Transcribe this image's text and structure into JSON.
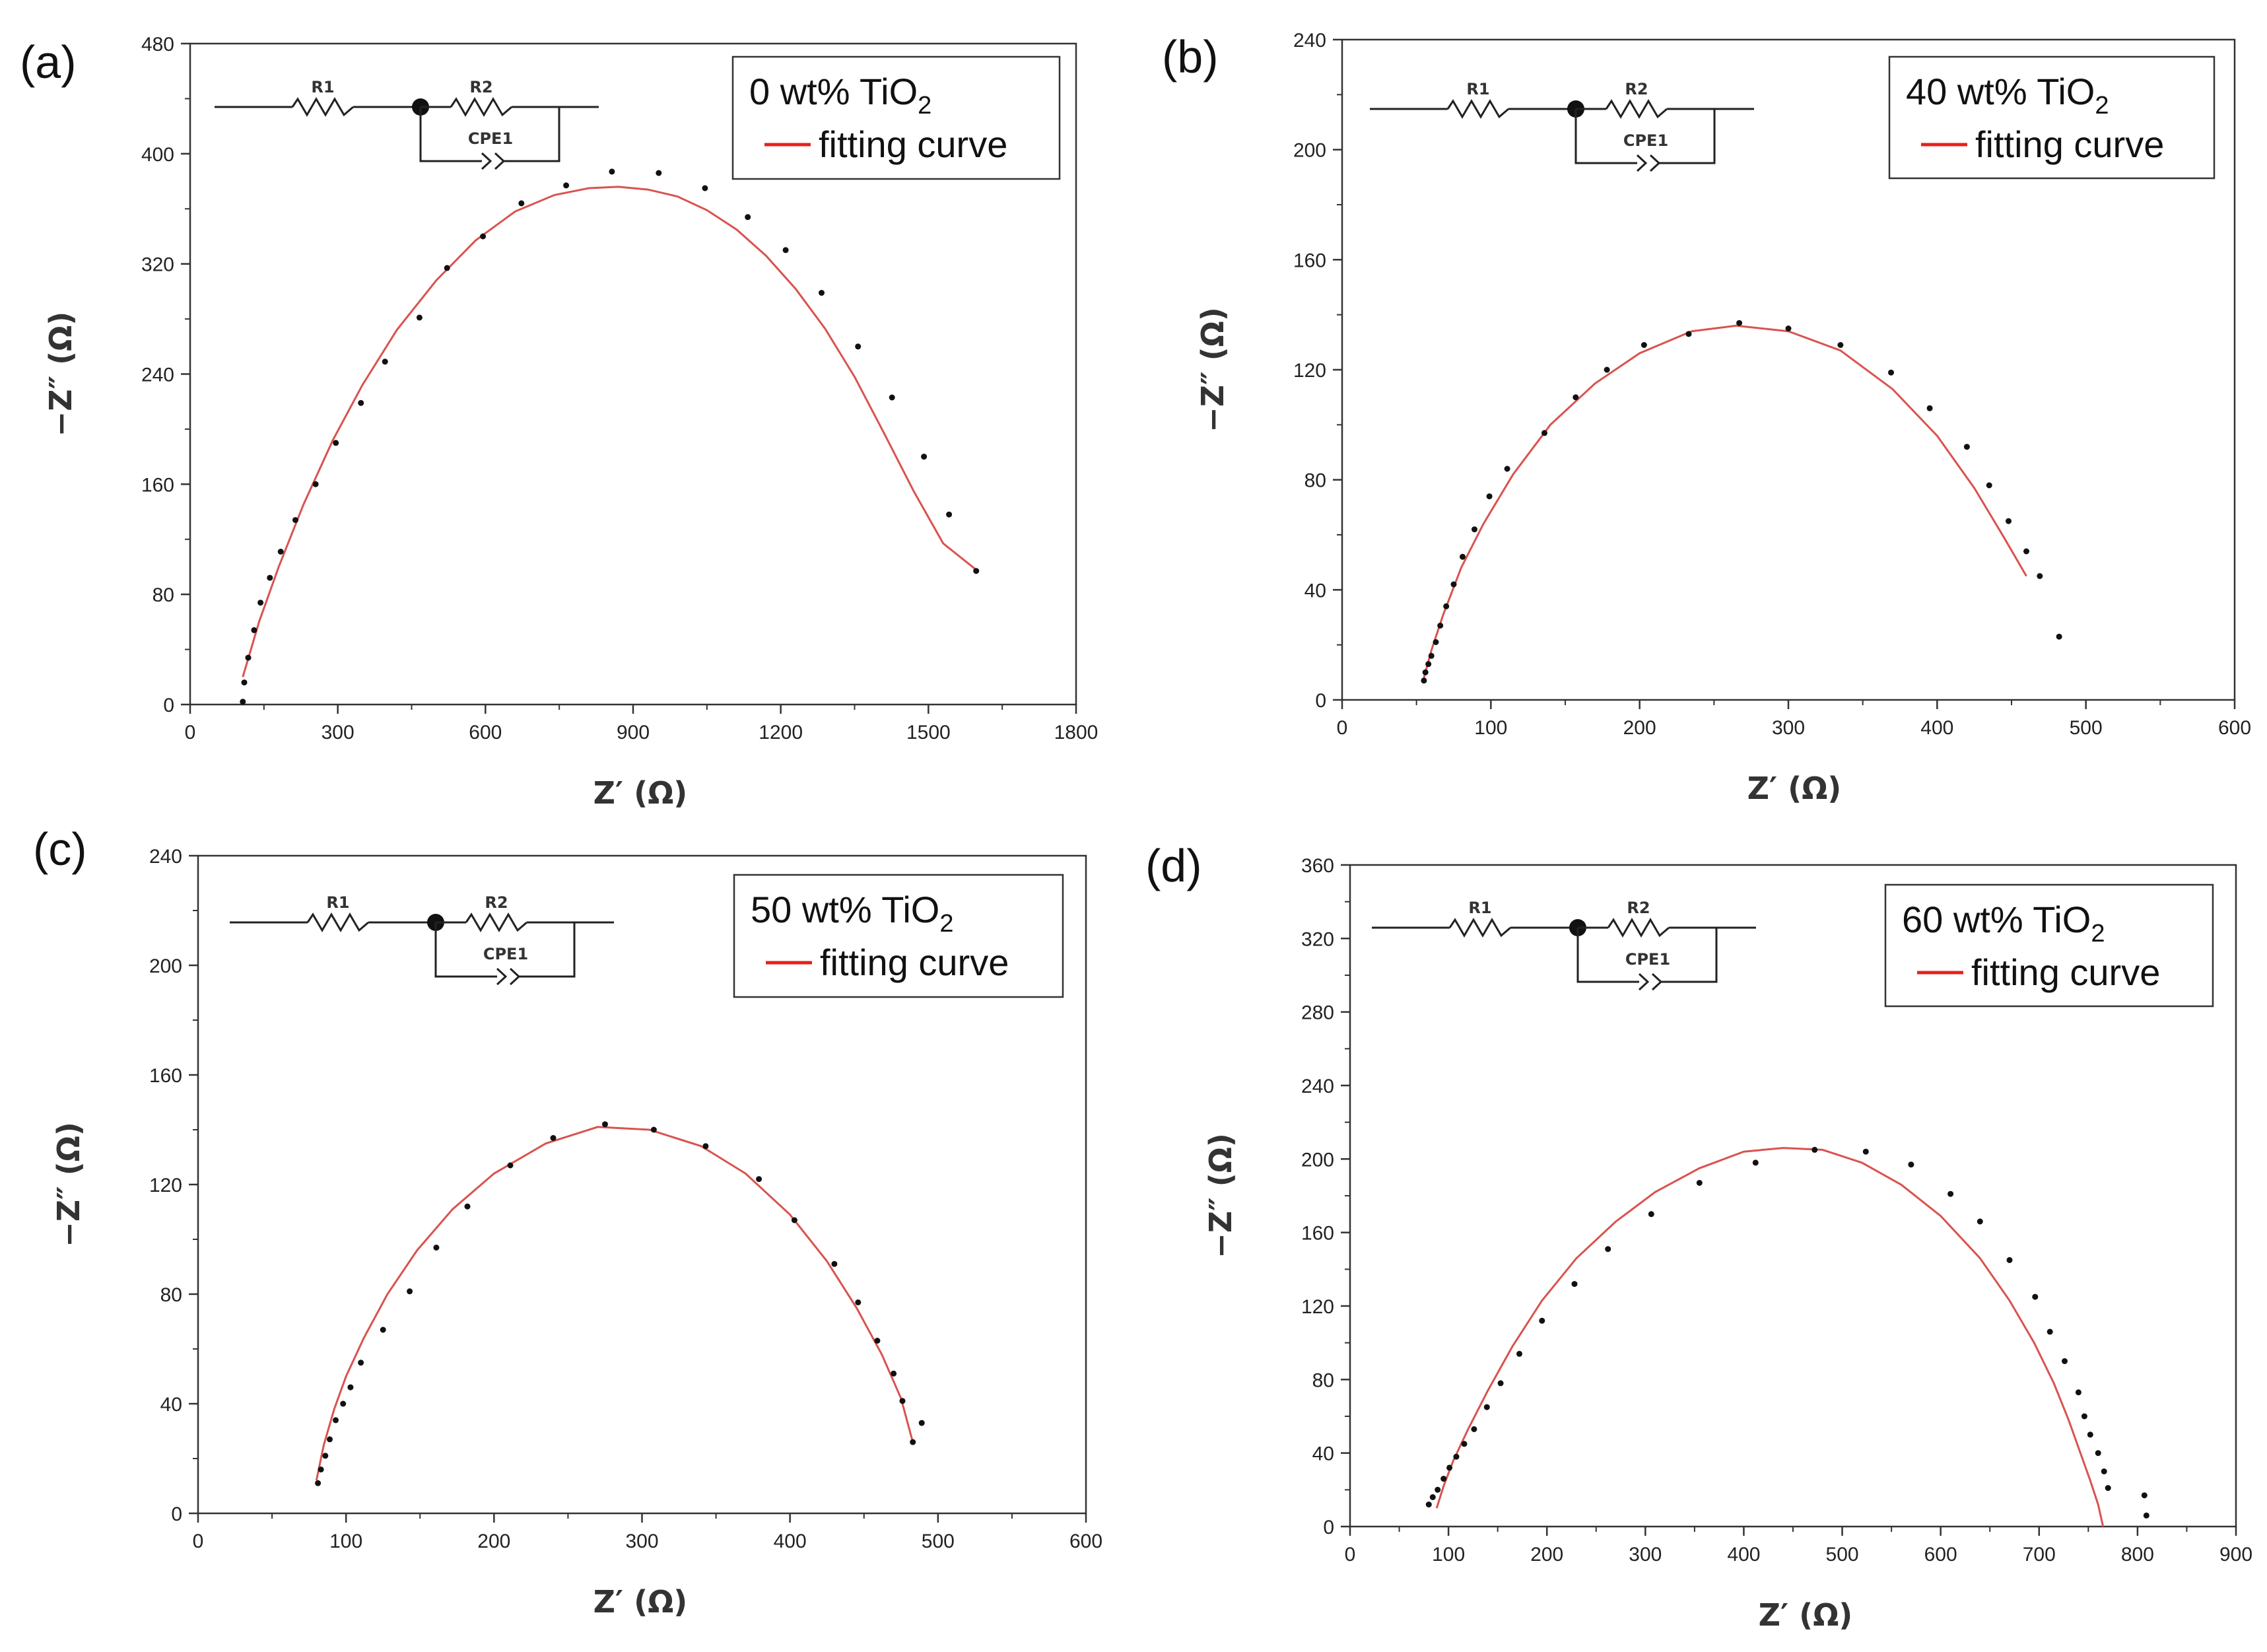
{
  "chart_data": [
    {
      "panel": "(a)",
      "type": "scatter",
      "xlabel": "Z′ (Ω)",
      "ylabel": "−Z″ (Ω)",
      "xlim": [
        0,
        1800
      ],
      "ylim": [
        0,
        480
      ],
      "xticks": [
        "0",
        "300",
        "600",
        "900",
        "1200",
        "1500",
        "1800"
      ],
      "yticks": [
        "0",
        "80",
        "160",
        "240",
        "320",
        "400",
        "480"
      ],
      "legend": {
        "sample": "0 wt% TiO",
        "subscript": "2",
        "fit_label": "fitting curve"
      },
      "circuit": {
        "r1": "R1",
        "r2": "R2",
        "cpe": "CPE1"
      },
      "series": [
        {
          "name": "data",
          "x": [
            107,
            110,
            118,
            130,
            143,
            162,
            184,
            214,
            255,
            296,
            347,
            396,
            466,
            522,
            595,
            673,
            764,
            857,
            952,
            1046,
            1133,
            1210,
            1283,
            1357,
            1426,
            1491,
            1542,
            1597
          ],
          "y": [
            2,
            16,
            34,
            54,
            74,
            92,
            111,
            134,
            160,
            190,
            219,
            249,
            281,
            317,
            340,
            364,
            377,
            387,
            386,
            375,
            354,
            330,
            299,
            260,
            223,
            180,
            138,
            97
          ]
        },
        {
          "name": "fitting curve",
          "color": "#d9534f",
          "x": [
            107,
            140,
            180,
            230,
            290,
            350,
            420,
            500,
            580,
            660,
            740,
            810,
            870,
            930,
            990,
            1050,
            1110,
            1170,
            1230,
            1290,
            1350,
            1410,
            1470,
            1530,
            1600
          ],
          "y": [
            20,
            60,
            100,
            145,
            192,
            232,
            272,
            308,
            337,
            358,
            370,
            375,
            376,
            374,
            369,
            359,
            345,
            326,
            302,
            273,
            238,
            197,
            155,
            117,
            97
          ]
        }
      ]
    },
    {
      "panel": "(b)",
      "type": "scatter",
      "xlabel": "Z′ (Ω)",
      "ylabel": "−Z″ (Ω)",
      "xlim": [
        0,
        600
      ],
      "ylim": [
        0,
        240
      ],
      "xticks": [
        "0",
        "100",
        "200",
        "300",
        "400",
        "500",
        "600"
      ],
      "yticks": [
        "0",
        "40",
        "80",
        "120",
        "160",
        "200",
        "240"
      ],
      "legend": {
        "sample": "40 wt% TiO",
        "subscript": "2",
        "fit_label": "fitting curve"
      },
      "circuit": {
        "r1": "R1",
        "r2": "R2",
        "cpe": "CPE1"
      },
      "series": [
        {
          "name": "data",
          "x": [
            55,
            56,
            58,
            60,
            63,
            66,
            70,
            75,
            81,
            89,
            99,
            111,
            136,
            157,
            178,
            203,
            233,
            267,
            300,
            335,
            369,
            395,
            420,
            435,
            448,
            460,
            469,
            482
          ],
          "y": [
            7,
            10,
            13,
            16,
            21,
            27,
            34,
            42,
            52,
            62,
            74,
            84,
            97,
            110,
            120,
            129,
            133,
            137,
            135,
            129,
            119,
            106,
            92,
            78,
            65,
            54,
            45,
            23
          ]
        },
        {
          "name": "fitting curve",
          "color": "#d9534f",
          "x": [
            55,
            60,
            68,
            80,
            95,
            115,
            140,
            170,
            200,
            235,
            265,
            300,
            335,
            370,
            400,
            425,
            445,
            460
          ],
          "y": [
            8,
            18,
            31,
            48,
            64,
            82,
            100,
            115,
            126,
            134,
            136,
            134,
            127,
            113,
            96,
            77,
            59,
            45
          ]
        }
      ]
    },
    {
      "panel": "(c)",
      "type": "scatter",
      "xlabel": "Z′ (Ω)",
      "ylabel": "−Z″ (Ω)",
      "xlim": [
        0,
        600
      ],
      "ylim": [
        0,
        240
      ],
      "xticks": [
        "0",
        "100",
        "200",
        "300",
        "400",
        "500",
        "600"
      ],
      "yticks": [
        "0",
        "40",
        "80",
        "120",
        "160",
        "200",
        "240"
      ],
      "legend": {
        "sample": "50 wt% TiO",
        "subscript": "2",
        "fit_label": "fitting curve"
      },
      "circuit": {
        "r1": "R1",
        "r2": "R2",
        "cpe": "CPE1"
      },
      "series": [
        {
          "name": "data",
          "x": [
            81,
            83,
            86,
            89,
            93,
            98,
            103,
            110,
            125,
            143,
            161,
            182,
            211,
            240,
            275,
            308,
            343,
            379,
            403,
            430,
            446,
            459,
            470,
            476,
            483,
            489
          ],
          "y": [
            11,
            16,
            21,
            27,
            34,
            40,
            46,
            55,
            67,
            81,
            97,
            112,
            127,
            137,
            142,
            140,
            134,
            122,
            107,
            91,
            77,
            63,
            51,
            41,
            26,
            33
          ]
        },
        {
          "name": "fitting curve",
          "color": "#d9534f",
          "x": [
            80,
            85,
            92,
            100,
            112,
            128,
            148,
            172,
            200,
            235,
            270,
            305,
            340,
            370,
            400,
            425,
            445,
            462,
            475,
            483
          ],
          "y": [
            12,
            25,
            38,
            50,
            64,
            80,
            96,
            111,
            124,
            135,
            141,
            140,
            134,
            124,
            109,
            92,
            75,
            58,
            42,
            26
          ]
        }
      ]
    },
    {
      "panel": "(d)",
      "type": "scatter",
      "xlabel": "Z′ (Ω)",
      "ylabel": "−Z″ (Ω)",
      "xlim": [
        0,
        900
      ],
      "ylim": [
        0,
        360
      ],
      "xticks": [
        "0",
        "100",
        "200",
        "300",
        "400",
        "500",
        "600",
        "700",
        "800",
        "900"
      ],
      "yticks": [
        "0",
        "40",
        "80",
        "120",
        "160",
        "200",
        "240",
        "280",
        "320",
        "360"
      ],
      "legend": {
        "sample": "60 wt% TiO",
        "subscript": "2",
        "fit_label": "fitting curve"
      },
      "circuit": {
        "r1": "R1",
        "r2": "R2",
        "cpe": "CPE1"
      },
      "series": [
        {
          "name": "data",
          "x": [
            80,
            84,
            89,
            95,
            101,
            108,
            116,
            126,
            139,
            153,
            172,
            195,
            228,
            262,
            306,
            355,
            412,
            472,
            524,
            570,
            610,
            640,
            670,
            696,
            711,
            726,
            740,
            746,
            752,
            760,
            766,
            770,
            807,
            809
          ],
          "y": [
            12,
            16,
            20,
            26,
            32,
            38,
            45,
            53,
            65,
            78,
            94,
            112,
            132,
            151,
            170,
            187,
            198,
            205,
            204,
            197,
            181,
            166,
            145,
            125,
            106,
            90,
            73,
            60,
            50,
            40,
            30,
            21,
            17,
            6
          ],
          "note": "two extra points near x≈807–809"
        },
        {
          "name": "fitting curve",
          "color": "#d9534f",
          "x": [
            88,
            95,
            105,
            120,
            140,
            165,
            195,
            230,
            270,
            310,
            355,
            400,
            440,
            480,
            520,
            560,
            600,
            640,
            670,
            695,
            715,
            730,
            742,
            752,
            760,
            765
          ],
          "y": [
            10,
            22,
            36,
            53,
            74,
            98,
            123,
            146,
            166,
            182,
            195,
            204,
            206,
            205,
            198,
            186,
            169,
            146,
            123,
            100,
            78,
            58,
            40,
            25,
            12,
            0
          ]
        }
      ]
    }
  ]
}
